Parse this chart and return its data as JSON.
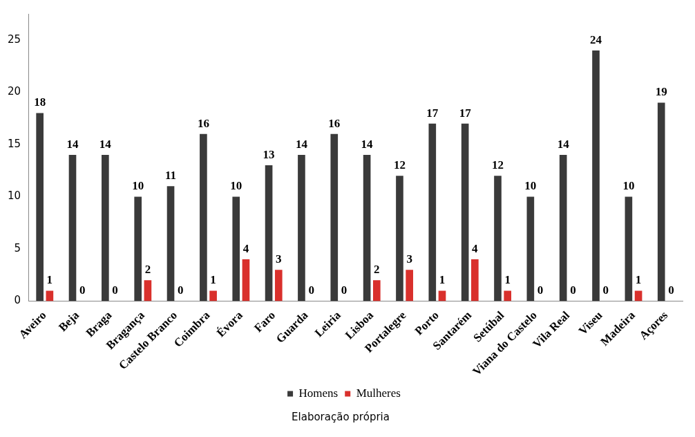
{
  "chart_data": {
    "type": "bar",
    "categories": [
      "Aveiro",
      "Beja",
      "Braga",
      "Bragança",
      "Castelo Branco",
      "Coimbra",
      "Évora",
      "Faro",
      "Guarda",
      "Leiria",
      "Lisboa",
      "Portalegre",
      "Porto",
      "Santarém",
      "Setúbal",
      "Viana do Castelo",
      "Vila Real",
      "Viseu",
      "Madeira",
      "Açores"
    ],
    "series": [
      {
        "name": "Homens",
        "color": "#3a3a3a",
        "values": [
          18,
          14,
          14,
          10,
          11,
          16,
          10,
          13,
          14,
          16,
          14,
          12,
          17,
          17,
          12,
          10,
          14,
          24,
          10,
          19
        ]
      },
      {
        "name": "Mulheres",
        "color": "#d9302c",
        "values": [
          1,
          0,
          0,
          2,
          0,
          1,
          4,
          3,
          0,
          0,
          2,
          3,
          1,
          4,
          1,
          0,
          0,
          0,
          1,
          0
        ]
      }
    ],
    "ylim": [
      0,
      27.5
    ],
    "yticks": [
      0,
      5,
      10,
      15,
      20,
      25
    ],
    "grid": false,
    "legend": "bottom",
    "data_labels": true,
    "annotations": [
      "Elaboração própria"
    ]
  }
}
